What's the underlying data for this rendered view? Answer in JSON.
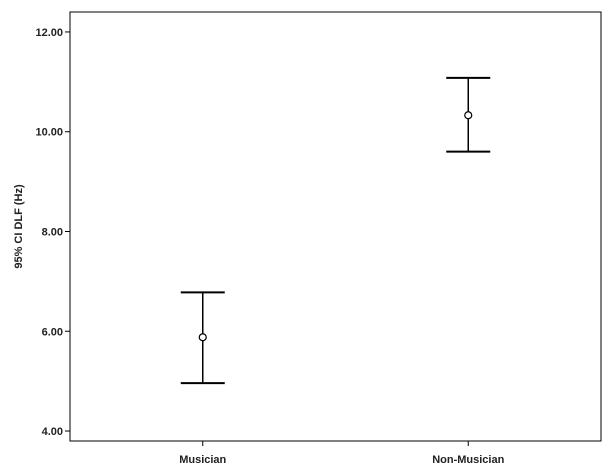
{
  "chart_data": {
    "type": "errorbar",
    "title": "",
    "xlabel": "",
    "ylabel": "95% CI DLF (Hz)",
    "categories": [
      "Musician",
      "Non-Musician"
    ],
    "series": [
      {
        "mean": [
          5.88,
          10.33
        ],
        "ci_lower": [
          4.96,
          9.6
        ],
        "ci_upper": [
          6.78,
          11.08
        ]
      }
    ],
    "ylim": [
      3.8,
      12.4
    ],
    "yticks": [
      4.0,
      6.0,
      8.0,
      10.0,
      12.0
    ],
    "ytick_labels": [
      "4.00",
      "6.00",
      "8.00",
      "10.00",
      "12.00"
    ],
    "grid": false,
    "legend": "none",
    "colors": {
      "line": "#000000",
      "frame": "#000000",
      "text": "#222222",
      "background": "#ffffff"
    }
  }
}
